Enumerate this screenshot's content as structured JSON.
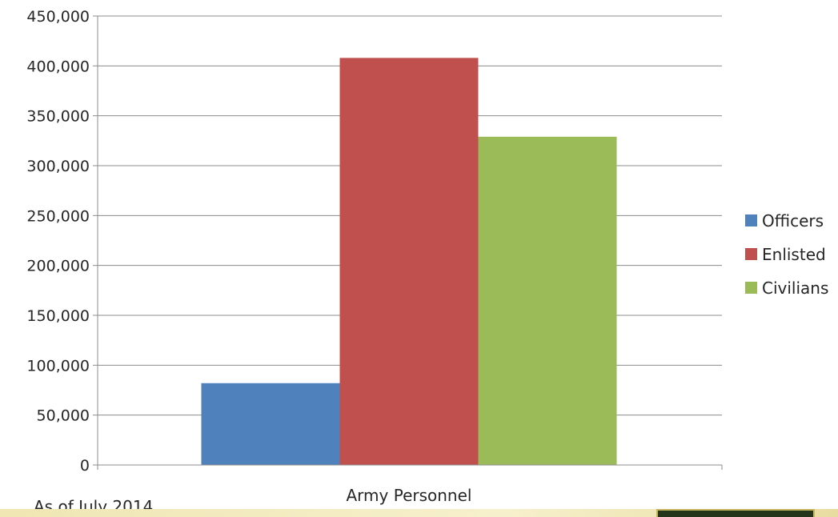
{
  "chart_data": {
    "type": "bar",
    "categories": [
      "Army Personnel"
    ],
    "series": [
      {
        "name": "Officers",
        "values": [
          82000
        ],
        "color": "#4f81bd"
      },
      {
        "name": "Enlisted",
        "values": [
          408000
        ],
        "color": "#c0504d"
      },
      {
        "name": "Civilians",
        "values": [
          329000
        ],
        "color": "#9bbb59"
      }
    ],
    "yticks": [
      "0",
      "50,000",
      "100,000",
      "150,000",
      "200,000",
      "250,000",
      "300,000",
      "350,000",
      "400,000",
      "450,000"
    ],
    "ylim": [
      0,
      450000
    ],
    "grid": true,
    "legend_position": "right",
    "title": "",
    "xlabel": "",
    "ylabel": ""
  },
  "note": "As of July 2014"
}
